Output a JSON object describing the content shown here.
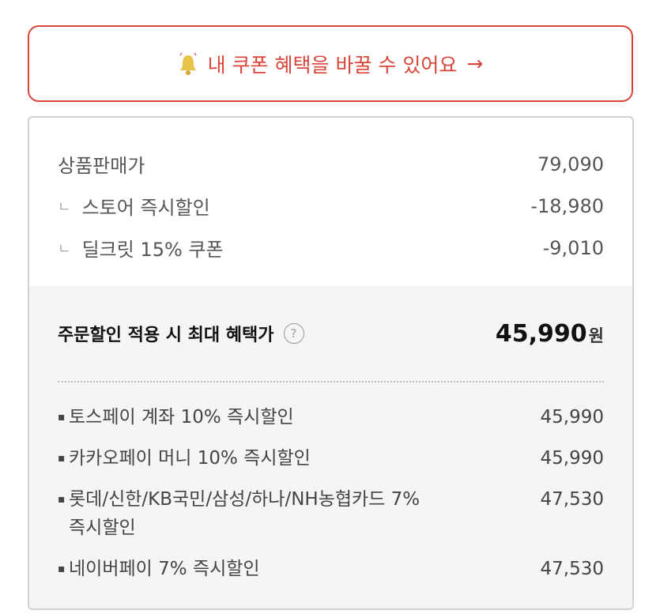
{
  "banner": {
    "text": "내 쿠폰 혜택을 바꿀 수 있어요",
    "arrow": "→",
    "icon": "bell-icon",
    "color": "#d9453a"
  },
  "price": {
    "rows": [
      {
        "label": "상품판매가",
        "value": "79,090",
        "sub": false
      },
      {
        "label": "스토어 즉시할인",
        "value": "-18,980",
        "sub": true
      },
      {
        "label": "딜크릿 15% 쿠폰",
        "value": "-9,010",
        "sub": true
      }
    ],
    "sub_marker": "ㄴ"
  },
  "total": {
    "label": "주문할인 적용 시 최대 혜택가",
    "help": "?",
    "value": "45,990",
    "unit": "원"
  },
  "discounts": [
    {
      "label": "토스페이 계좌 10% 즉시할인",
      "value": "45,990"
    },
    {
      "label": "카카오페이 머니 10% 즉시할인",
      "value": "45,990"
    },
    {
      "label": "롯데/신한/KB국민/삼성/하나/NH농협카드 7% 즉시할인",
      "value": "47,530"
    },
    {
      "label": "네이버페이 7% 즉시할인",
      "value": "47,530"
    }
  ],
  "bullet": "▪"
}
